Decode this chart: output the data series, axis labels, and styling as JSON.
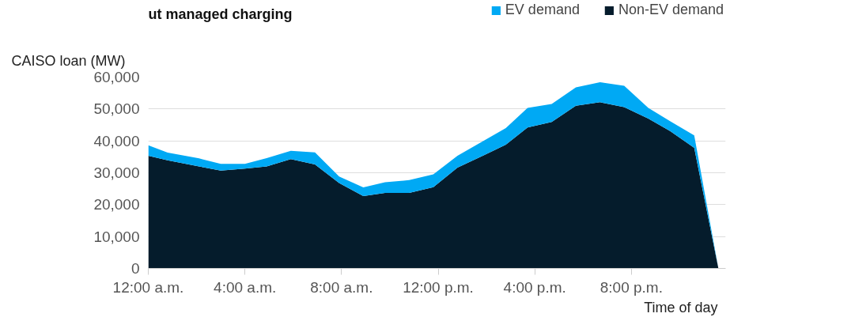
{
  "chart_data": {
    "type": "area",
    "stacked": true,
    "title": "ut managed charging",
    "ylabel": "CAISO loan (MW)",
    "xlabel": "Time of day",
    "x": [
      0,
      0.8,
      2.1,
      3.0,
      4.0,
      4.9,
      5.9,
      6.9,
      7.9,
      8.9,
      9.8,
      10.8,
      11.8,
      12.8,
      13.9,
      14.8,
      15.7,
      16.7,
      17.7,
      18.7,
      19.7,
      20.7,
      21.6,
      22.6,
      23.6
    ],
    "series": [
      {
        "name": "Non-EV demand",
        "color": "#051c2c",
        "values": [
          35300,
          33900,
          32000,
          30700,
          31300,
          32000,
          34300,
          32600,
          26800,
          22700,
          23700,
          23700,
          25500,
          31600,
          35500,
          38800,
          44200,
          45900,
          51000,
          52100,
          50600,
          47000,
          43100,
          37800,
          0
        ]
      },
      {
        "name": "EV demand",
        "color": "#00a9f4",
        "values": [
          3300,
          2400,
          2500,
          2100,
          1500,
          2600,
          2600,
          3800,
          2000,
          2700,
          3300,
          4000,
          4000,
          3700,
          4600,
          5200,
          6100,
          5700,
          5800,
          6300,
          6700,
          3300,
          3100,
          3900,
          0
        ]
      }
    ],
    "xlim": [
      0,
      23.9
    ],
    "xticks": [
      {
        "value": 0,
        "label": "12:00 a.m."
      },
      {
        "value": 4,
        "label": "4:00 a.m."
      },
      {
        "value": 8,
        "label": "8:00 a.m."
      },
      {
        "value": 12,
        "label": "12:00 p.m."
      },
      {
        "value": 16,
        "label": "4:00 p.m."
      },
      {
        "value": 20,
        "label": "8:00 p.m."
      }
    ],
    "ylim": [
      0,
      60000
    ],
    "yticks": [
      0,
      {
        "value": 10000,
        "label": "10,000"
      },
      {
        "value": 20000,
        "label": "20,000"
      },
      {
        "value": 30000,
        "label": "30,000"
      },
      {
        "value": 40000,
        "label": "40,000"
      },
      {
        "value": 50000,
        "label": "50,000"
      },
      {
        "value": 60000,
        "label": "60,000"
      }
    ],
    "grid": "y",
    "legend": "top right"
  }
}
